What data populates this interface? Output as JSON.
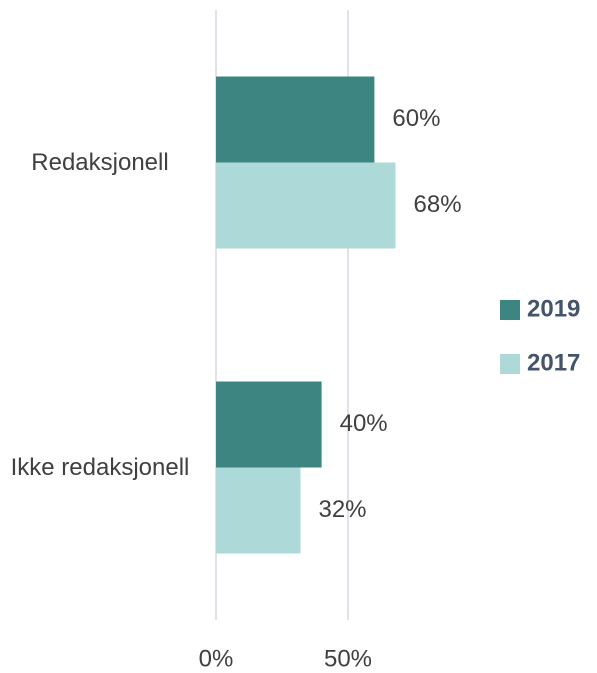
{
  "chart_data": {
    "type": "bar",
    "orientation": "horizontal",
    "categories": [
      "Redaksjonell",
      "Ikke redaksjonell"
    ],
    "series": [
      {
        "name": "2019",
        "color": "#3d8580",
        "values": [
          60,
          40
        ],
        "value_labels": [
          "60%",
          "40%"
        ]
      },
      {
        "name": "2017",
        "color": "#aed9d9",
        "values": [
          68,
          32
        ],
        "value_labels": [
          "68%",
          "32%"
        ]
      }
    ],
    "xlim": [
      0,
      100
    ],
    "xticks": [
      {
        "value": 0,
        "label": "0%"
      },
      {
        "value": 50,
        "label": "50%"
      }
    ],
    "grid": true,
    "legend": "right"
  }
}
